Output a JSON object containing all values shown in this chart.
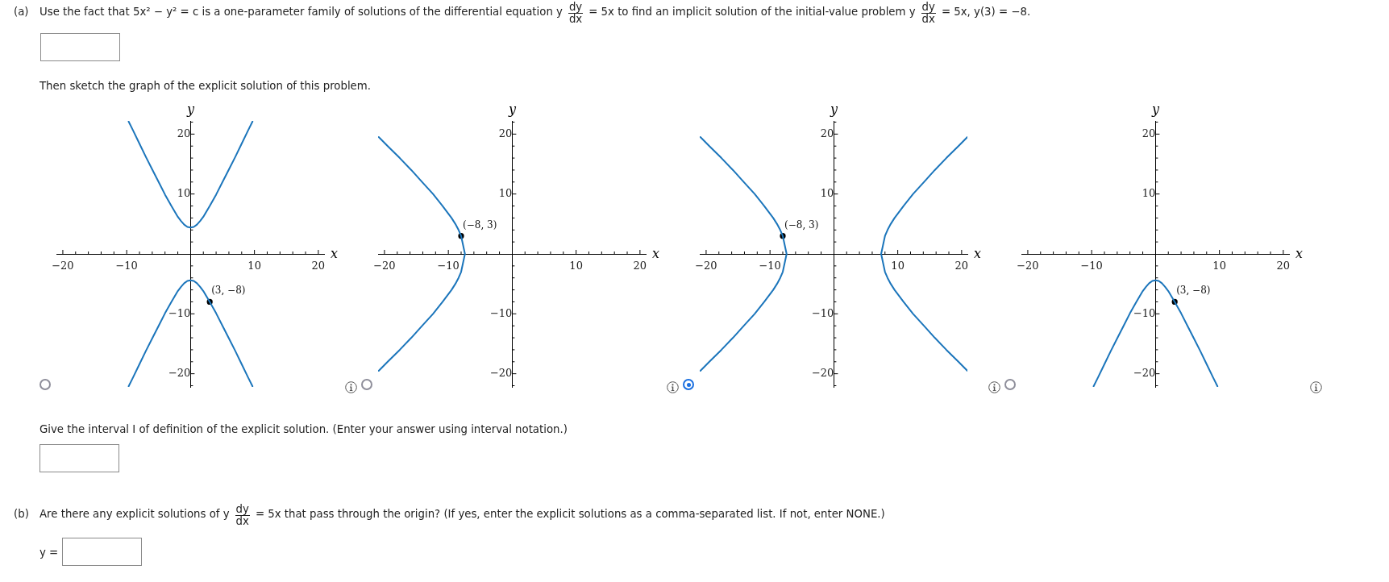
{
  "chart_data": [
    {
      "type": "other",
      "annotations": [
        "(a)",
        "Use the fact that 5x² − y² = c is a one-parameter family of solutions of the differential equation y",
        "dy",
        "dx",
        "= 5x to find an implicit solution of the initial-value problem y",
        "dy",
        "dx",
        "= 5x, y(3) = −8.",
        "Then sketch the graph of the explicit solution of this problem.",
        "Give the interval I of definition of the explicit solution. (Enter your answer using interval notation.)",
        "(b)",
        "Are there any explicit solutions of y",
        "dy",
        "dx",
        "= 5x that pass through the origin? (If yes, enter the explicit solutions as a comma-separated list. If not, enter NONE.)",
        "y ="
      ]
    },
    {
      "type": "line",
      "xlabel": "x",
      "ylabel": "y",
      "xlim": [
        -21,
        20.9
      ],
      "ylim": [
        -22.2,
        22.2
      ],
      "xticks": [
        {
          "value": -20,
          "label": "−20"
        },
        {
          "value": -18,
          "label": null
        },
        {
          "value": -16,
          "label": null
        },
        {
          "value": -14,
          "label": null
        },
        {
          "value": -12,
          "label": null
        },
        {
          "value": -10,
          "label": "−10"
        },
        {
          "value": -8,
          "label": null
        },
        {
          "value": -6,
          "label": null
        },
        {
          "value": -4,
          "label": null
        },
        {
          "value": -2,
          "label": null
        },
        {
          "value": 2,
          "label": null
        },
        {
          "value": 4,
          "label": null
        },
        {
          "value": 6,
          "label": null
        },
        {
          "value": 8,
          "label": null
        },
        {
          "value": 10,
          "label": "10"
        },
        {
          "value": 12,
          "label": null
        },
        {
          "value": 14,
          "label": null
        },
        {
          "value": 16,
          "label": null
        },
        {
          "value": 18,
          "label": null
        },
        {
          "value": 20,
          "label": "20"
        }
      ],
      "yticks": [
        {
          "value": -22,
          "label": null
        },
        {
          "value": -20,
          "label": "−20"
        },
        {
          "value": -18,
          "label": null
        },
        {
          "value": -16,
          "label": null
        },
        {
          "value": -14,
          "label": null
        },
        {
          "value": -12,
          "label": null
        },
        {
          "value": -10,
          "label": "−10"
        },
        {
          "value": -8,
          "label": null
        },
        {
          "value": -6,
          "label": null
        },
        {
          "value": -4,
          "label": null
        },
        {
          "value": -2,
          "label": null
        },
        {
          "value": 2,
          "label": null
        },
        {
          "value": 4,
          "label": null
        },
        {
          "value": 6,
          "label": null
        },
        {
          "value": 8,
          "label": null
        },
        {
          "value": 10,
          "label": "10"
        },
        {
          "value": 12,
          "label": null
        },
        {
          "value": 14,
          "label": null
        },
        {
          "value": 16,
          "label": null
        },
        {
          "value": 18,
          "label": null
        },
        {
          "value": 20,
          "label": "20"
        },
        {
          "value": 22,
          "label": null
        }
      ],
      "series": [
        {
          "type": "line",
          "color": "#1b75bb",
          "x": [
            -9.7,
            -9,
            -8,
            -7,
            -6,
            -5,
            -4,
            -3,
            -2,
            -1.5,
            -1,
            -0.5,
            0,
            0.5,
            1,
            1.5,
            2,
            3,
            4,
            5,
            6,
            7,
            8,
            9,
            9.7
          ],
          "values": [
            22.1,
            20.6,
            18.4,
            16.2,
            14.1,
            12,
            9.9,
            8,
            6.2,
            5.5,
            4.9,
            4.5,
            4.4,
            4.5,
            4.9,
            5.5,
            6.2,
            8,
            9.9,
            12,
            14.1,
            16.2,
            18.4,
            20.6,
            22.1
          ]
        },
        {
          "type": "line",
          "color": "#1b75bb",
          "x": [
            -9.7,
            -9,
            -8,
            -7,
            -6,
            -5,
            -4,
            -3,
            -2,
            -1.5,
            -1,
            -0.5,
            0,
            0.5,
            1,
            1.5,
            2,
            3,
            4,
            5,
            6,
            7,
            8,
            9,
            9.7
          ],
          "values": [
            -22.1,
            -20.6,
            -18.4,
            -16.2,
            -14.1,
            -12,
            -9.9,
            -8,
            -6.2,
            -5.5,
            -4.9,
            -4.5,
            -4.4,
            -4.5,
            -4.9,
            -5.5,
            -6.2,
            -8,
            -9.9,
            -12,
            -14.1,
            -16.2,
            -18.4,
            -20.6,
            -22.1
          ]
        },
        {
          "type": "scatter",
          "color": "#000000",
          "marker": "circle",
          "x": [
            3
          ],
          "values": [
            -8
          ],
          "value_labels": [
            "(3, −8)"
          ]
        }
      ]
    },
    {
      "type": "line",
      "xlabel": "x",
      "ylabel": "y",
      "xlim": [
        -21,
        20.9
      ],
      "ylim": [
        -22.2,
        22.2
      ],
      "xticks": [
        {
          "value": -20,
          "label": "−20"
        },
        {
          "value": -18,
          "label": null
        },
        {
          "value": -16,
          "label": null
        },
        {
          "value": -14,
          "label": null
        },
        {
          "value": -12,
          "label": null
        },
        {
          "value": -10,
          "label": "−10"
        },
        {
          "value": -8,
          "label": null
        },
        {
          "value": -6,
          "label": null
        },
        {
          "value": -4,
          "label": null
        },
        {
          "value": -2,
          "label": null
        },
        {
          "value": 2,
          "label": null
        },
        {
          "value": 4,
          "label": null
        },
        {
          "value": 6,
          "label": null
        },
        {
          "value": 8,
          "label": null
        },
        {
          "value": 10,
          "label": "10"
        },
        {
          "value": 12,
          "label": null
        },
        {
          "value": 14,
          "label": null
        },
        {
          "value": 16,
          "label": null
        },
        {
          "value": 18,
          "label": null
        },
        {
          "value": 20,
          "label": "20"
        }
      ],
      "yticks": [
        {
          "value": -22,
          "label": null
        },
        {
          "value": -20,
          "label": "−20"
        },
        {
          "value": -18,
          "label": null
        },
        {
          "value": -16,
          "label": null
        },
        {
          "value": -14,
          "label": null
        },
        {
          "value": -12,
          "label": null
        },
        {
          "value": -10,
          "label": "−10"
        },
        {
          "value": -8,
          "label": null
        },
        {
          "value": -6,
          "label": null
        },
        {
          "value": -4,
          "label": null
        },
        {
          "value": -2,
          "label": null
        },
        {
          "value": 2,
          "label": null
        },
        {
          "value": 4,
          "label": null
        },
        {
          "value": 6,
          "label": null
        },
        {
          "value": 8,
          "label": null
        },
        {
          "value": 10,
          "label": "10"
        },
        {
          "value": 12,
          "label": null
        },
        {
          "value": 14,
          "label": null
        },
        {
          "value": 16,
          "label": null
        },
        {
          "value": 18,
          "label": null
        },
        {
          "value": 20,
          "label": "20"
        },
        {
          "value": 22,
          "label": null
        }
      ],
      "series": [
        {
          "type": "line",
          "color": "#1b75bb",
          "x": [
            -20.9,
            -19.5,
            -17.6,
            -15.8,
            -14.1,
            -12.4,
            -10.9,
            -9.5,
            -8.9,
            -8.4,
            -8,
            -7.4,
            -8,
            -8.4,
            -8.9,
            -9.5,
            -10.9,
            -12.4,
            -14.1,
            -15.8,
            -17.6,
            -19.5,
            -20.9
          ],
          "values": [
            19.5,
            18,
            16,
            14,
            12,
            10,
            8,
            6,
            5,
            4,
            3,
            0,
            -3,
            -4,
            -5,
            -6,
            -8,
            -10,
            -12,
            -14,
            -16,
            -18,
            -19.5
          ]
        },
        {
          "type": "scatter",
          "color": "#000000",
          "marker": "circle",
          "x": [
            -8
          ],
          "values": [
            3
          ],
          "value_labels": [
            "(−8, 3)"
          ]
        }
      ]
    },
    {
      "type": "line",
      "xlabel": "x",
      "ylabel": "y",
      "xlim": [
        -21,
        20.9
      ],
      "ylim": [
        -22.2,
        22.2
      ],
      "xticks": [
        {
          "value": -20,
          "label": "−20"
        },
        {
          "value": -18,
          "label": null
        },
        {
          "value": -16,
          "label": null
        },
        {
          "value": -14,
          "label": null
        },
        {
          "value": -12,
          "label": null
        },
        {
          "value": -10,
          "label": "−10"
        },
        {
          "value": -8,
          "label": null
        },
        {
          "value": -6,
          "label": null
        },
        {
          "value": -4,
          "label": null
        },
        {
          "value": -2,
          "label": null
        },
        {
          "value": 2,
          "label": null
        },
        {
          "value": 4,
          "label": null
        },
        {
          "value": 6,
          "label": null
        },
        {
          "value": 8,
          "label": null
        },
        {
          "value": 10,
          "label": "10"
        },
        {
          "value": 12,
          "label": null
        },
        {
          "value": 14,
          "label": null
        },
        {
          "value": 16,
          "label": null
        },
        {
          "value": 18,
          "label": null
        },
        {
          "value": 20,
          "label": "20"
        }
      ],
      "yticks": [
        {
          "value": -22,
          "label": null
        },
        {
          "value": -20,
          "label": "−20"
        },
        {
          "value": -18,
          "label": null
        },
        {
          "value": -16,
          "label": null
        },
        {
          "value": -14,
          "label": null
        },
        {
          "value": -12,
          "label": null
        },
        {
          "value": -10,
          "label": "−10"
        },
        {
          "value": -8,
          "label": null
        },
        {
          "value": -6,
          "label": null
        },
        {
          "value": -4,
          "label": null
        },
        {
          "value": -2,
          "label": null
        },
        {
          "value": 2,
          "label": null
        },
        {
          "value": 4,
          "label": null
        },
        {
          "value": 6,
          "label": null
        },
        {
          "value": 8,
          "label": null
        },
        {
          "value": 10,
          "label": "10"
        },
        {
          "value": 12,
          "label": null
        },
        {
          "value": 14,
          "label": null
        },
        {
          "value": 16,
          "label": null
        },
        {
          "value": 18,
          "label": null
        },
        {
          "value": 20,
          "label": "20"
        },
        {
          "value": 22,
          "label": null
        }
      ],
      "series": [
        {
          "type": "line",
          "color": "#1b75bb",
          "x": [
            -20.9,
            -19.5,
            -17.6,
            -15.8,
            -14.1,
            -12.4,
            -10.9,
            -9.5,
            -8.9,
            -8.4,
            -8,
            -7.4,
            -8,
            -8.4,
            -8.9,
            -9.5,
            -10.9,
            -12.4,
            -14.1,
            -15.8,
            -17.6,
            -19.5,
            -20.9
          ],
          "values": [
            19.5,
            18,
            16,
            14,
            12,
            10,
            8,
            6,
            5,
            4,
            3,
            0,
            -3,
            -4,
            -5,
            -6,
            -8,
            -10,
            -12,
            -14,
            -16,
            -18,
            -19.5
          ]
        },
        {
          "type": "line",
          "color": "#1b75bb",
          "x": [
            20.9,
            19.5,
            17.6,
            15.8,
            14.1,
            12.4,
            10.9,
            9.5,
            8.9,
            8.4,
            8,
            7.4,
            8,
            8.4,
            8.9,
            9.5,
            10.9,
            12.4,
            14.1,
            15.8,
            17.6,
            19.5,
            20.9
          ],
          "values": [
            19.5,
            18,
            16,
            14,
            12,
            10,
            8,
            6,
            5,
            4,
            3,
            0,
            -3,
            -4,
            -5,
            -6,
            -8,
            -10,
            -12,
            -14,
            -16,
            -18,
            -19.5
          ]
        },
        {
          "type": "scatter",
          "color": "#000000",
          "marker": "circle",
          "x": [
            -8
          ],
          "values": [
            3
          ],
          "value_labels": [
            "(−8, 3)"
          ]
        }
      ]
    },
    {
      "type": "line",
      "xlabel": "x",
      "ylabel": "y",
      "xlim": [
        -21,
        20.9
      ],
      "ylim": [
        -22.2,
        22.2
      ],
      "xticks": [
        {
          "value": -20,
          "label": "−20"
        },
        {
          "value": -18,
          "label": null
        },
        {
          "value": -16,
          "label": null
        },
        {
          "value": -14,
          "label": null
        },
        {
          "value": -12,
          "label": null
        },
        {
          "value": -10,
          "label": "−10"
        },
        {
          "value": -8,
          "label": null
        },
        {
          "value": -6,
          "label": null
        },
        {
          "value": -4,
          "label": null
        },
        {
          "value": -2,
          "label": null
        },
        {
          "value": 2,
          "label": null
        },
        {
          "value": 4,
          "label": null
        },
        {
          "value": 6,
          "label": null
        },
        {
          "value": 8,
          "label": null
        },
        {
          "value": 10,
          "label": "10"
        },
        {
          "value": 12,
          "label": null
        },
        {
          "value": 14,
          "label": null
        },
        {
          "value": 16,
          "label": null
        },
        {
          "value": 18,
          "label": null
        },
        {
          "value": 20,
          "label": "20"
        }
      ],
      "yticks": [
        {
          "value": -22,
          "label": null
        },
        {
          "value": -20,
          "label": "−20"
        },
        {
          "value": -18,
          "label": null
        },
        {
          "value": -16,
          "label": null
        },
        {
          "value": -14,
          "label": null
        },
        {
          "value": -12,
          "label": null
        },
        {
          "value": -10,
          "label": "−10"
        },
        {
          "value": -8,
          "label": null
        },
        {
          "value": -6,
          "label": null
        },
        {
          "value": -4,
          "label": null
        },
        {
          "value": -2,
          "label": null
        },
        {
          "value": 2,
          "label": null
        },
        {
          "value": 4,
          "label": null
        },
        {
          "value": 6,
          "label": null
        },
        {
          "value": 8,
          "label": null
        },
        {
          "value": 10,
          "label": "10"
        },
        {
          "value": 12,
          "label": null
        },
        {
          "value": 14,
          "label": null
        },
        {
          "value": 16,
          "label": null
        },
        {
          "value": 18,
          "label": null
        },
        {
          "value": 20,
          "label": "20"
        },
        {
          "value": 22,
          "label": null
        }
      ],
      "series": [
        {
          "type": "line",
          "color": "#1b75bb",
          "x": [
            -9.7,
            -9,
            -8,
            -7,
            -6,
            -5,
            -4,
            -3,
            -2,
            -1.5,
            -1,
            -0.5,
            0,
            0.5,
            1,
            1.5,
            2,
            3,
            4,
            5,
            6,
            7,
            8,
            9,
            9.7
          ],
          "values": [
            -22.1,
            -20.6,
            -18.4,
            -16.2,
            -14.1,
            -12,
            -9.9,
            -8,
            -6.2,
            -5.5,
            -4.9,
            -4.5,
            -4.4,
            -4.5,
            -4.9,
            -5.5,
            -6.2,
            -8,
            -9.9,
            -12,
            -14.1,
            -16.2,
            -18.4,
            -20.6,
            -22.1
          ]
        },
        {
          "type": "scatter",
          "color": "#000000",
          "marker": "circle",
          "x": [
            3
          ],
          "values": [
            -8
          ],
          "value_labels": [
            "(3, −8)"
          ]
        }
      ]
    }
  ]
}
